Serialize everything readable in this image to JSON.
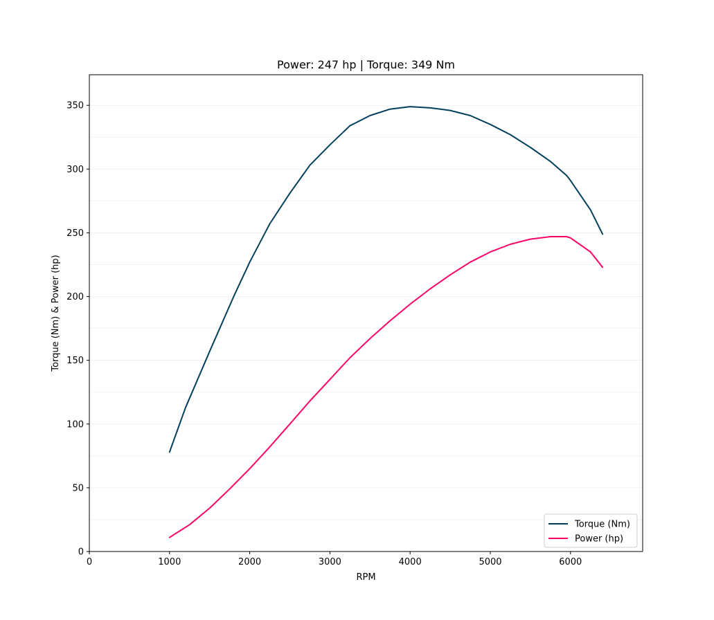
{
  "chart_data": {
    "type": "line",
    "title": "Power: 247 hp | Torque: 349 Nm",
    "xlabel": "RPM",
    "ylabel": "Torque (Nm) & Power (hp)",
    "xlim": [
      0,
      6900
    ],
    "ylim": [
      0,
      374
    ],
    "xticks": [
      0,
      1000,
      2000,
      3000,
      4000,
      5000,
      6000
    ],
    "yticks": [
      0,
      50,
      100,
      150,
      200,
      250,
      300,
      350
    ],
    "grid": "horizontal-faint",
    "legend_position": "lower-right",
    "series": [
      {
        "name": "Torque (Nm)",
        "color": "#003f5c",
        "x": [
          1000,
          1200,
          1500,
          1800,
          2000,
          2250,
          2500,
          2750,
          3000,
          3250,
          3500,
          3750,
          4000,
          4250,
          4500,
          4750,
          5000,
          5250,
          5500,
          5750,
          5950,
          6000,
          6250,
          6400
        ],
        "y": [
          78,
          113,
          157,
          200,
          227,
          257,
          281,
          303,
          319,
          334,
          342,
          347,
          349,
          348,
          346,
          342,
          335,
          327,
          317,
          306,
          295,
          291,
          268,
          249
        ]
      },
      {
        "name": "Power (hp)",
        "color": "#ff0066",
        "x": [
          1000,
          1250,
          1500,
          1750,
          2000,
          2250,
          2500,
          2750,
          3000,
          3250,
          3500,
          3750,
          4000,
          4250,
          4500,
          4750,
          5000,
          5250,
          5500,
          5750,
          5950,
          6000,
          6250,
          6400
        ],
        "y": [
          11,
          21,
          34,
          49,
          65,
          82,
          100,
          118,
          135,
          152,
          167,
          181,
          194,
          206,
          217,
          227,
          235,
          241,
          245,
          247,
          247,
          246,
          235,
          223
        ]
      }
    ]
  }
}
